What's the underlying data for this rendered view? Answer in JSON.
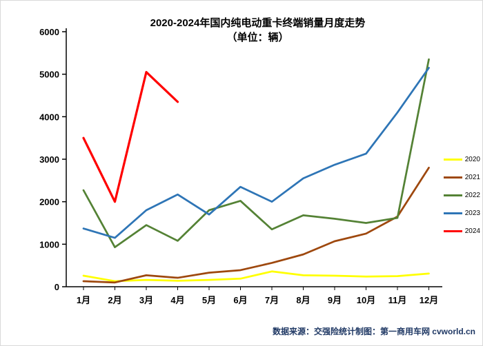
{
  "chart_data": {
    "type": "line",
    "title": "2020-2024年国内纯电动重卡终端销量月度走势",
    "subtitle": "（单位：辆）",
    "categories": [
      "1月",
      "2月",
      "3月",
      "4月",
      "5月",
      "6月",
      "7月",
      "8月",
      "9月",
      "10月",
      "11月",
      "12月"
    ],
    "xlabel": "",
    "ylabel": "",
    "ylim": [
      0,
      6000
    ],
    "yticks": [
      0,
      1000,
      2000,
      3000,
      4000,
      5000,
      6000
    ],
    "grid": false,
    "legend_position": "right",
    "series": [
      {
        "name": "2020",
        "color": "#FFFF00",
        "values": [
          260,
          130,
          160,
          140,
          160,
          190,
          360,
          270,
          260,
          240,
          250,
          310
        ]
      },
      {
        "name": "2021",
        "color": "#9E480E",
        "values": [
          130,
          100,
          270,
          210,
          330,
          390,
          560,
          760,
          1070,
          1250,
          1650,
          2800
        ]
      },
      {
        "name": "2022",
        "color": "#548235",
        "values": [
          2270,
          930,
          1450,
          1080,
          1800,
          2020,
          1350,
          1680,
          1600,
          1500,
          1620,
          5350
        ]
      },
      {
        "name": "2023",
        "color": "#2E75B6",
        "values": [
          1370,
          1150,
          1800,
          2170,
          1700,
          2350,
          2000,
          2550,
          2870,
          3130,
          4100,
          5150
        ]
      },
      {
        "name": "2024",
        "color": "#FF0000",
        "values": [
          3500,
          2000,
          5050,
          4350
        ]
      }
    ]
  },
  "footer": {
    "text": "数据来源：交强险统计制图：第一商用车网 cvworld.cn"
  }
}
